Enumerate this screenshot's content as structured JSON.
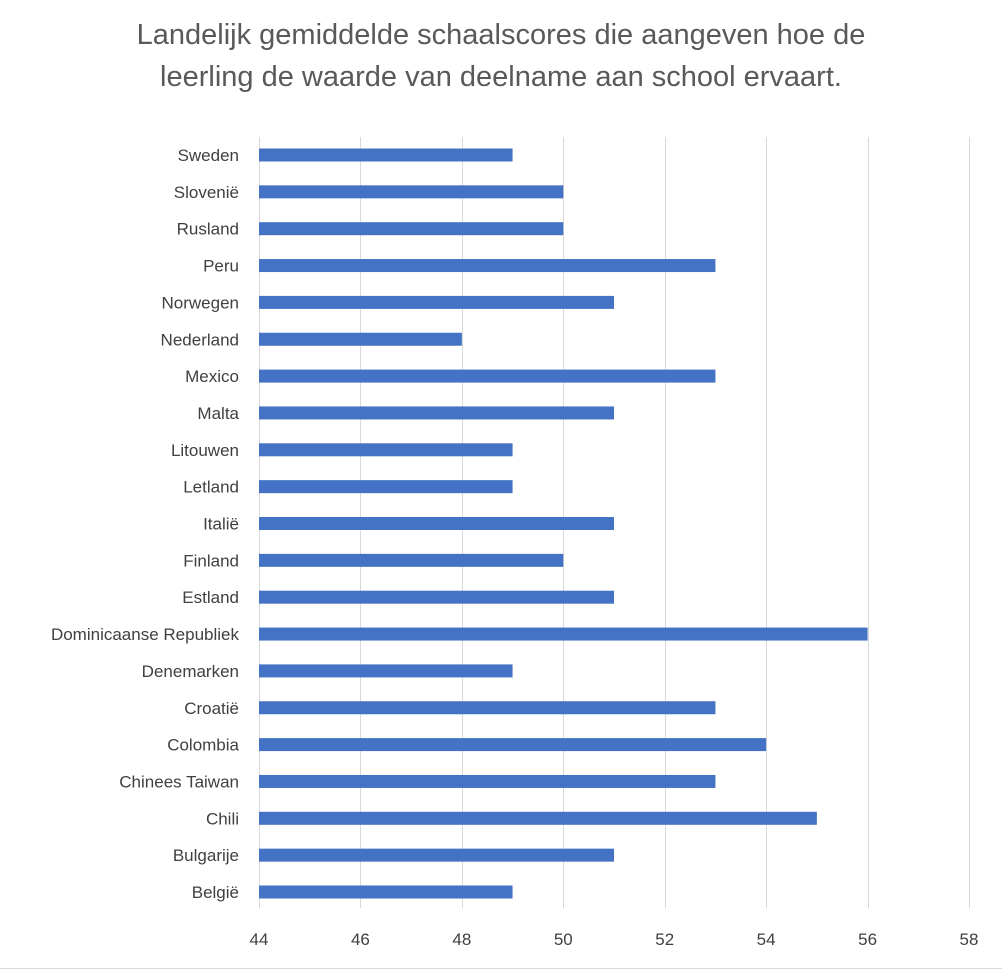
{
  "chart_data": {
    "type": "bar",
    "orientation": "horizontal",
    "title": "Landelijk gemiddelde schaalscores die aangeven hoe de leerling de waarde van deelname aan school ervaart.",
    "title_lines": [
      "Landelijk gemiddelde schaalscores die aangeven hoe de",
      "leerling de waarde van deelname aan school ervaart."
    ],
    "xlabel": "",
    "ylabel": "",
    "xlim": [
      44,
      58
    ],
    "xticks": [
      "44",
      "46",
      "48",
      "50",
      "52",
      "54",
      "56",
      "58"
    ],
    "grid": true,
    "legend": "none",
    "bar_color": "#4472C4",
    "categories": [
      "Sweden",
      "Slovenië",
      "Rusland",
      "Peru",
      "Norwegen",
      "Nederland",
      "Mexico",
      "Malta",
      "Litouwen",
      "Letland",
      "Italië",
      "Finland",
      "Estland",
      "Dominicaanse Republiek",
      "Denemarken",
      "Croatië",
      "Colombia",
      "Chinees Taiwan",
      "Chili",
      "Bulgarije",
      "België"
    ],
    "values": [
      49,
      50,
      50,
      53,
      51,
      48,
      53,
      51,
      49,
      49,
      51,
      50,
      51,
      56,
      49,
      53,
      54,
      53,
      55,
      51,
      49
    ]
  }
}
